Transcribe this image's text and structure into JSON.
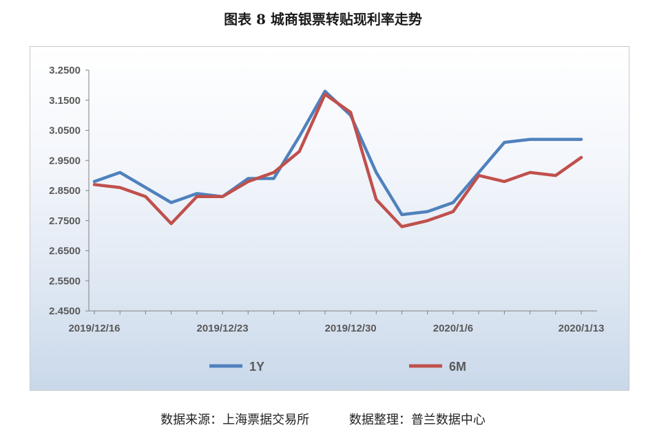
{
  "chart_data": {
    "type": "line",
    "title": "图表 8  城商银票转贴现利率走势",
    "xlabel": "",
    "ylabel": "",
    "ylim": [
      2.45,
      3.25
    ],
    "yticks": [
      "3.2500",
      "3.1500",
      "3.0500",
      "2.9500",
      "2.8500",
      "2.7500",
      "2.6500",
      "2.5500",
      "2.4500"
    ],
    "xticks": [
      "2019/12/16",
      "2019/12/23",
      "2019/12/30",
      "2020/1/6",
      "2020/1/13"
    ],
    "x": [
      "2019/12/16",
      "2019/12/17",
      "2019/12/18",
      "2019/12/19",
      "2019/12/20",
      "2019/12/23",
      "2019/12/24",
      "2019/12/25",
      "2019/12/26",
      "2019/12/27",
      "2019/12/30",
      "2019/12/31",
      "2020/1/2",
      "2020/1/3",
      "2020/1/6",
      "2020/1/7",
      "2020/1/8",
      "2020/1/9",
      "2020/1/10",
      "2020/1/13"
    ],
    "grid": false,
    "legend": "bottom",
    "series": [
      {
        "name": "1Y",
        "color": "#4f81bd",
        "values": [
          2.88,
          2.91,
          2.86,
          2.81,
          2.84,
          2.83,
          2.89,
          2.89,
          3.03,
          3.18,
          3.1,
          2.91,
          2.77,
          2.78,
          2.81,
          2.91,
          3.01,
          3.02,
          3.02,
          3.02
        ]
      },
      {
        "name": "6M",
        "color": "#c0504d",
        "values": [
          2.87,
          2.86,
          2.83,
          2.74,
          2.83,
          2.83,
          2.88,
          2.91,
          2.98,
          3.17,
          3.11,
          2.82,
          2.73,
          2.75,
          2.78,
          2.9,
          2.88,
          2.91,
          2.9,
          2.96
        ]
      }
    ]
  },
  "footer": {
    "source": "数据来源：上海票据交易所",
    "compiler": "数据整理：普兰数据中心"
  }
}
